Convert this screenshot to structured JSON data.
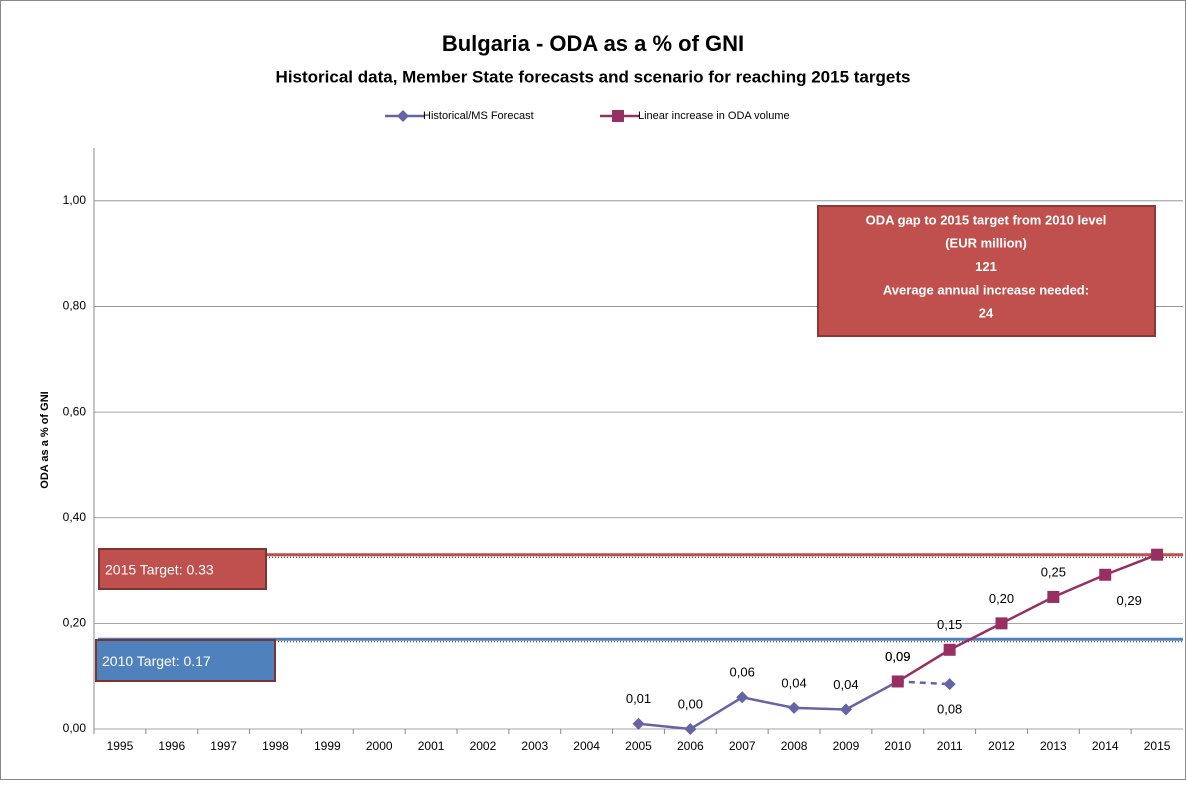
{
  "chart_data": {
    "type": "line",
    "title": "Bulgaria - ODA as a % of GNI",
    "subtitle": "Historical data, Member State forecasts and scenario for reaching 2015 targets",
    "y_label": "ODA as a % of GNI",
    "categories": [
      "1995",
      "1996",
      "1997",
      "1998",
      "1999",
      "2000",
      "2001",
      "2002",
      "2003",
      "2004",
      "2005",
      "2006",
      "2007",
      "2008",
      "2009",
      "2010",
      "2011",
      "2012",
      "2013",
      "2014",
      "2015"
    ],
    "series": [
      {
        "name": "Historical/MS Forecast",
        "color": "#6764a6",
        "marker": "diamond",
        "dash_from_index": 15,
        "values": [
          null,
          null,
          null,
          null,
          null,
          null,
          null,
          null,
          null,
          null,
          0.01,
          0.0,
          0.06,
          0.04,
          0.037,
          0.09,
          0.085,
          null,
          null,
          null,
          null
        ],
        "value_labels": [
          null,
          null,
          null,
          null,
          null,
          null,
          null,
          null,
          null,
          null,
          "0,01",
          "0,00",
          "0,06",
          "0,04",
          "0,04",
          "0,09",
          "0,08",
          null,
          null,
          null,
          null
        ]
      },
      {
        "name": "Linear increase in ODA volume",
        "color": "#963062",
        "marker": "square",
        "values": [
          null,
          null,
          null,
          null,
          null,
          null,
          null,
          null,
          null,
          null,
          null,
          null,
          null,
          null,
          null,
          0.09,
          0.15,
          0.2,
          0.25,
          0.292,
          0.33
        ],
        "value_labels": [
          null,
          null,
          null,
          null,
          null,
          null,
          null,
          null,
          null,
          null,
          null,
          null,
          null,
          null,
          null,
          "0,09",
          "0,15",
          "0,20",
          "0,25",
          "0,29",
          null
        ]
      }
    ],
    "ylim": [
      0,
      1.1
    ],
    "yticks": [
      {
        "value": 0,
        "label": "0,00"
      },
      {
        "value": 0.2,
        "label": "0,20"
      },
      {
        "value": 0.4,
        "label": "0,40"
      },
      {
        "value": 0.6,
        "label": "0,60"
      },
      {
        "value": 0.8,
        "label": "0,80"
      },
      {
        "value": 1.0,
        "label": "1,00"
      }
    ],
    "grid": true,
    "legend": "top",
    "targets": [
      {
        "label": "2015 Target: 0.33",
        "value": 0.33,
        "color": "#c0504d"
      },
      {
        "label": "2010 Target: 0.17",
        "value": 0.17,
        "color": "#4f81bd"
      }
    ],
    "annotation": {
      "lines": [
        "ODA gap to 2015 target from 2010 level",
        "(EUR million)",
        "121",
        "Average annual increase needed:",
        "24"
      ],
      "color": "#c0504d"
    }
  }
}
